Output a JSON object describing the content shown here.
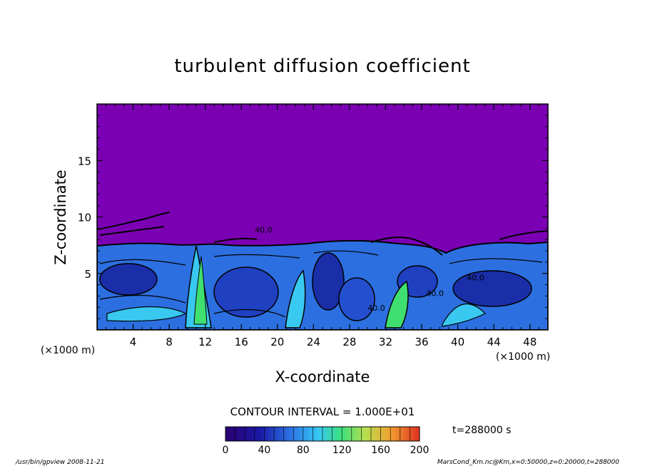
{
  "chart_data": {
    "type": "heatmap",
    "title": "turbulent diffusion coefficient",
    "xlabel": "X-coordinate",
    "ylabel": "Z-coordinate",
    "x_unit": "(×1000 m)",
    "y_unit": "(×1000 m)",
    "xlim": [
      0,
      50
    ],
    "ylim": [
      0,
      20
    ],
    "x_ticks": [
      4,
      8,
      12,
      16,
      20,
      24,
      28,
      32,
      36,
      40,
      44,
      48
    ],
    "y_ticks": [
      5,
      10,
      15
    ],
    "contour_interval_text": "CONTOUR INTERVAL = 1.000E+01",
    "colorbar": {
      "min": 0,
      "max": 200,
      "ticks": [
        0,
        40,
        80,
        120,
        160,
        200
      ]
    },
    "contour_labels": [
      "40.0",
      "40.0",
      "40.0",
      "40.0"
    ],
    "time_label": "t=288000 s",
    "footer_left": "/usr/bin/gpview   2008-11-21",
    "footer_right": "MarsCond_Km.nc@Km,x=0:50000,z=0:20000,t=288000",
    "colors": {
      "background_field": "#7B00B4",
      "low": "#1010A0",
      "mid_blue": "#2C6FE0",
      "cyan": "#39C8F0",
      "green": "#40E070",
      "high": "#E04020"
    }
  }
}
